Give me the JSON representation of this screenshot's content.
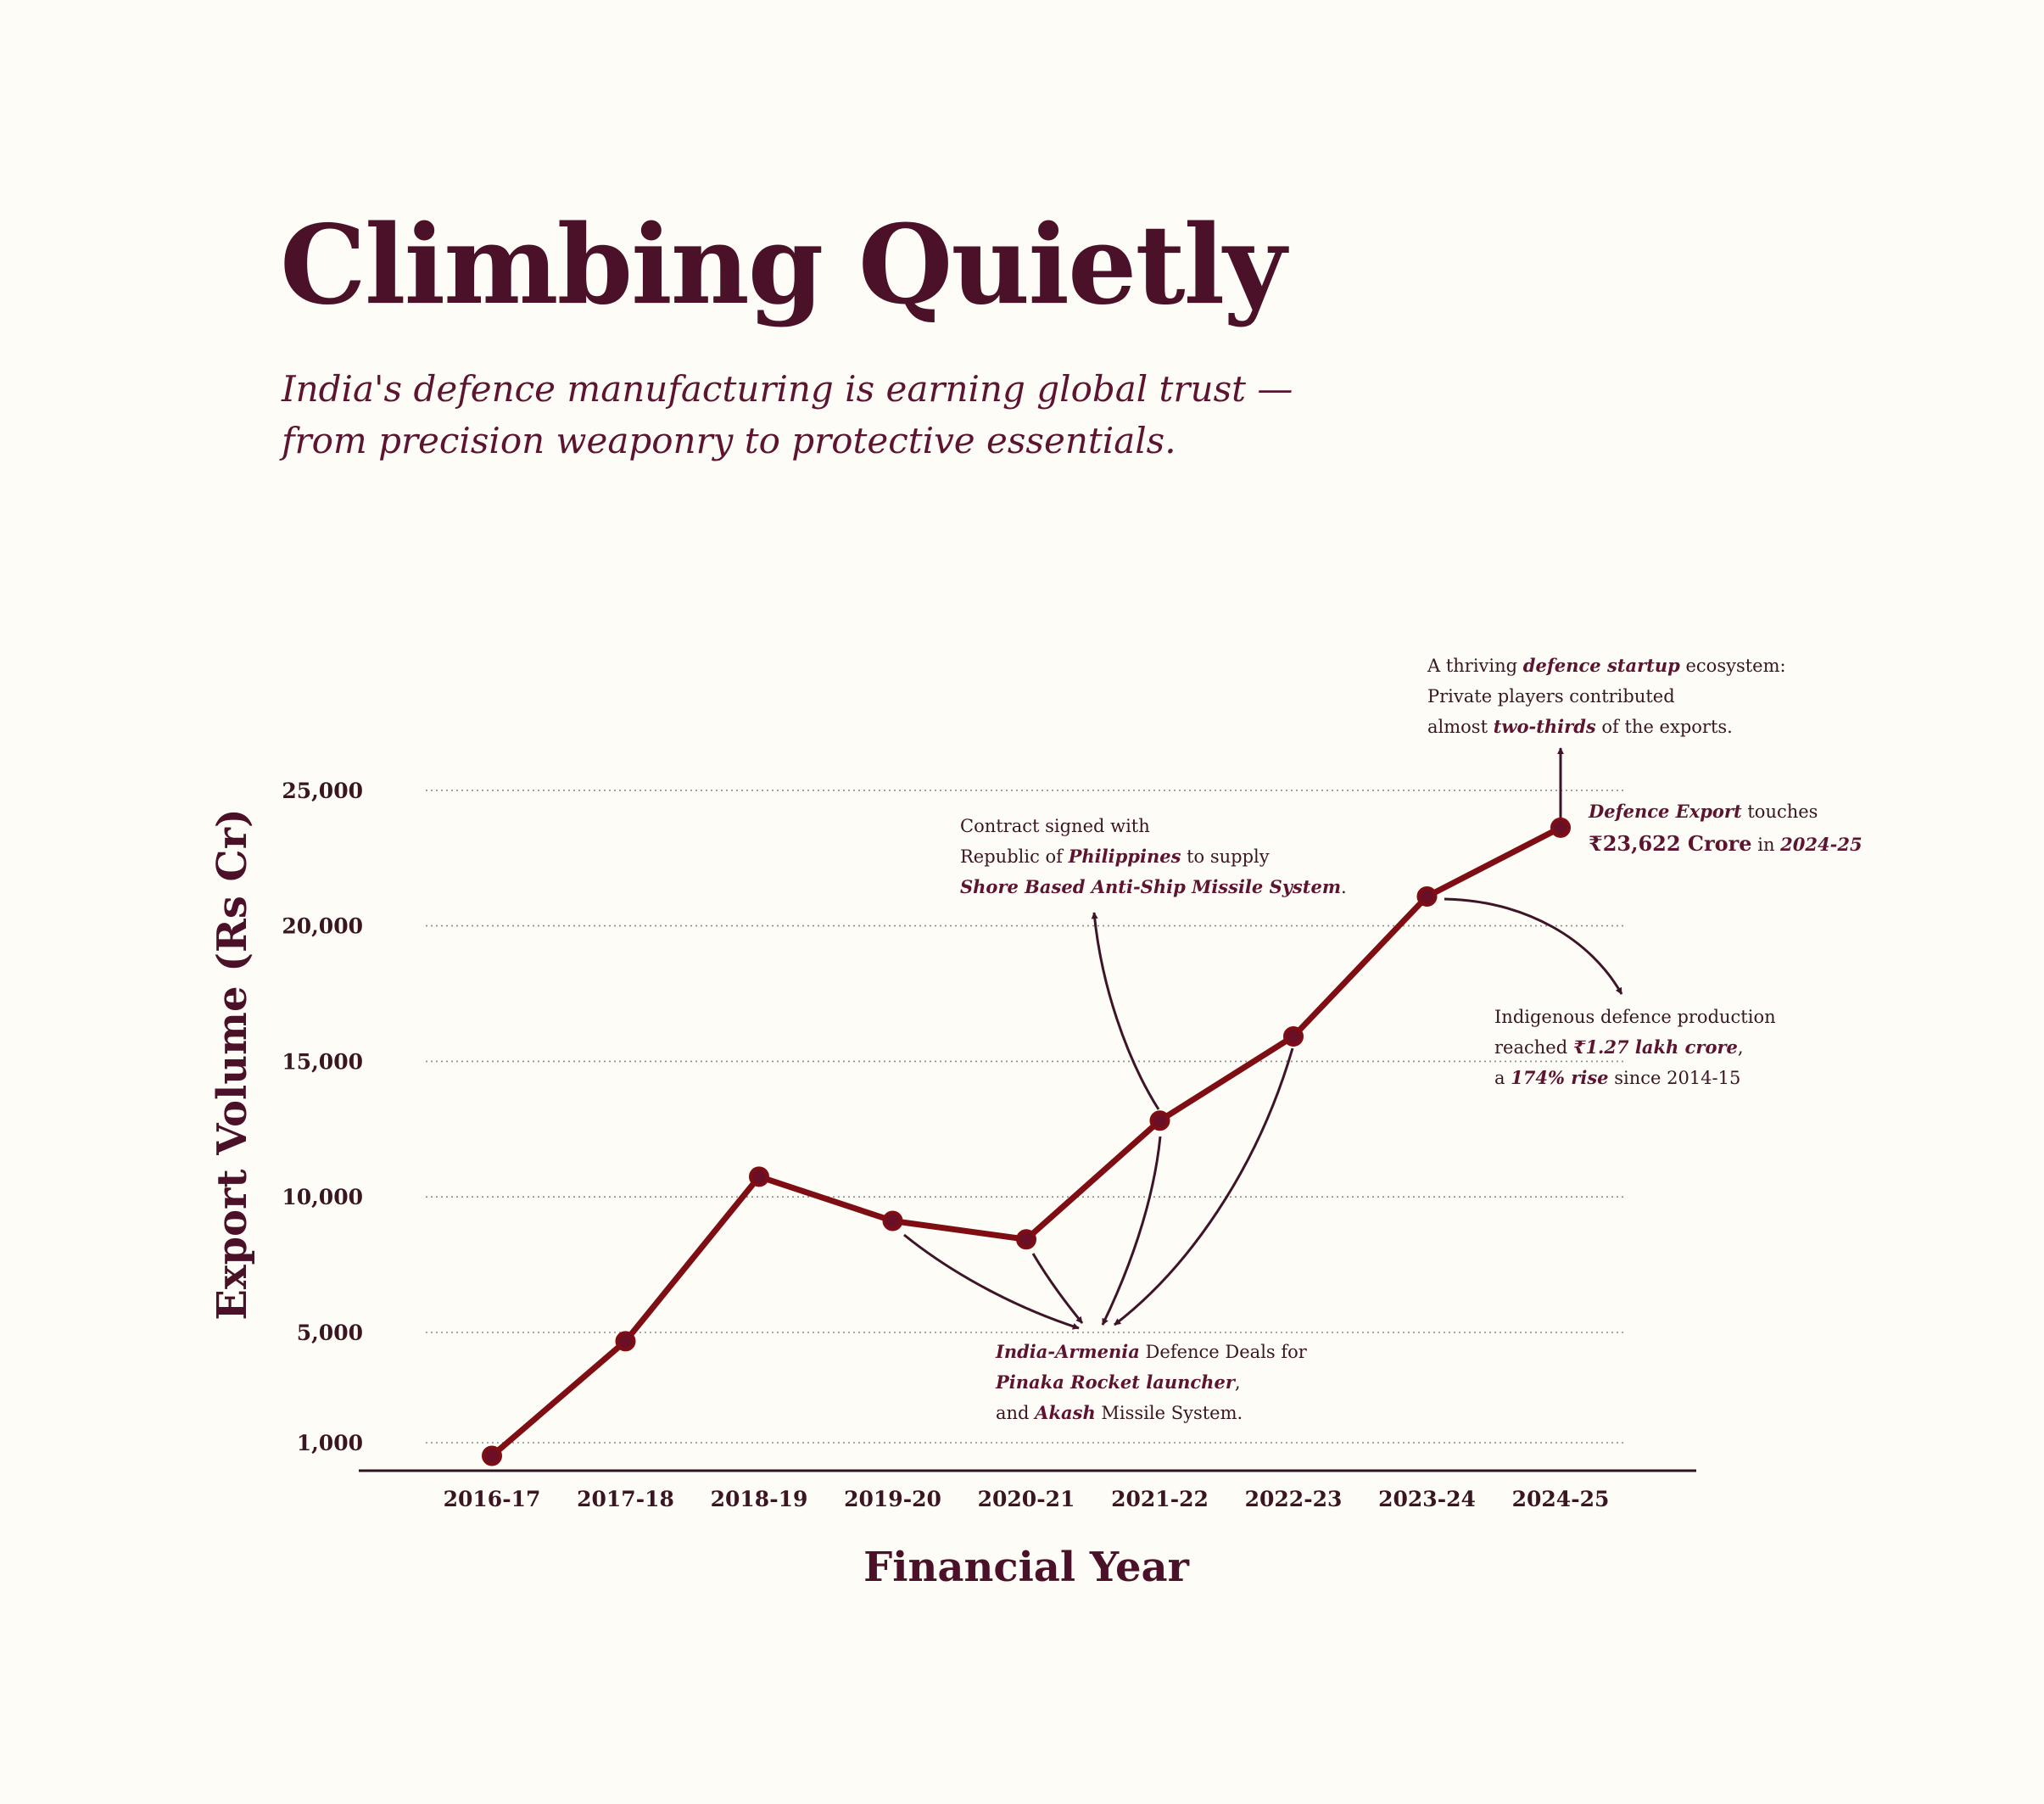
{
  "title": "Climbing Quietly",
  "subtitle_lines": [
    "India's defence manufacturing is earning global trust —",
    "from precision weaponry to protective essentials."
  ],
  "colors": {
    "background": "#fdfcf6",
    "series": "#7e0d14",
    "marker": "#6a0f26",
    "text": "#4a1128"
  },
  "chart_data": {
    "type": "line",
    "xlabel": "Financial Year",
    "ylabel": "Export Volume (Rs Cr)",
    "categories": [
      "2016-17",
      "2017-18",
      "2018-19",
      "2019-20",
      "2020-21",
      "2021-22",
      "2022-23",
      "2023-24",
      "2024-25"
    ],
    "series": [
      {
        "values": [
          522,
          4682,
          10746,
          9115,
          8434,
          12815,
          15920,
          21083,
          23622
        ]
      }
    ],
    "y_ticks": [
      1000,
      5000,
      10000,
      15000,
      20000,
      25000
    ],
    "y_tick_labels": [
      "1,000",
      "5,000",
      "10,000",
      "15,000",
      "20,000",
      "25,000"
    ],
    "grid": true,
    "annotations": {
      "philippines": [
        [
          {
            "t": "Contract signed with"
          }
        ],
        [
          {
            "t": "Republic of "
          },
          {
            "t": "Philippines",
            "em": true
          },
          {
            "t": " to supply"
          }
        ],
        [
          {
            "t": "Shore Based Anti-Ship Missile System",
            "em": true
          },
          {
            "t": "."
          }
        ]
      ],
      "startup": [
        [
          {
            "t": "A thriving "
          },
          {
            "t": "defence startup",
            "em": true
          },
          {
            "t": " ecosystem:"
          }
        ],
        [
          {
            "t": "Private players contributed"
          }
        ],
        [
          {
            "t": "almost "
          },
          {
            "t": "two-thirds",
            "em": true
          },
          {
            "t": " of the exports."
          }
        ]
      ],
      "export_touch": [
        [
          {
            "t": "Defence Export",
            "em": true
          },
          {
            "t": " touches"
          }
        ],
        [
          {
            "t": "₹23,622 Crore",
            "big": true
          },
          {
            "t": " in "
          },
          {
            "t": "2024-25",
            "em": true
          }
        ]
      ],
      "indigenous": [
        [
          {
            "t": "Indigenous defence production"
          }
        ],
        [
          {
            "t": "reached "
          },
          {
            "t": "₹1.27 lakh crore",
            "em": true
          },
          {
            "t": ","
          }
        ],
        [
          {
            "t": "a "
          },
          {
            "t": "174% rise",
            "em": true
          },
          {
            "t": " since 2014-15"
          }
        ]
      ],
      "armenia": [
        [
          {
            "t": "India-Armenia",
            "em": true
          },
          {
            "t": " Defence Deals for"
          }
        ],
        [
          {
            "t": "Pinaka Rocket launcher",
            "em": true
          },
          {
            "t": ","
          }
        ],
        [
          {
            "t": "and "
          },
          {
            "t": "Akash",
            "em": true
          },
          {
            "t": " Missile System."
          }
        ]
      ]
    }
  }
}
